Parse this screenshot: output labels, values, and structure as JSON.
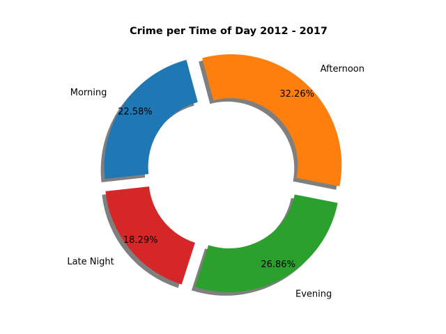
{
  "chart_data": {
    "type": "pie",
    "style": "donut",
    "title": "Crime per Time of Day 2012 - 2017",
    "slices": [
      {
        "label": "Afternoon",
        "percent_label": "32.26%",
        "value": 32.26,
        "color": "#ff7f0e",
        "exploded": true
      },
      {
        "label": "Evening",
        "percent_label": "26.86%",
        "value": 26.86,
        "color": "#2ca02c",
        "exploded": true
      },
      {
        "label": "Late Night",
        "percent_label": "18.29%",
        "value": 18.29,
        "color": "#d62728",
        "exploded": true
      },
      {
        "label": "Morning",
        "percent_label": "22.58%",
        "value": 22.58,
        "color": "#1f77b4",
        "exploded": true
      }
    ],
    "shadow": true
  }
}
